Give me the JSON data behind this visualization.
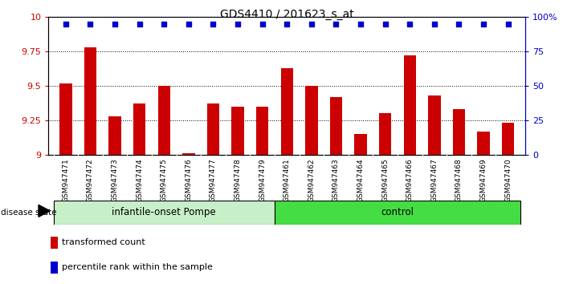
{
  "title": "GDS4410 / 201623_s_at",
  "samples": [
    "GSM947471",
    "GSM947472",
    "GSM947473",
    "GSM947474",
    "GSM947475",
    "GSM947476",
    "GSM947477",
    "GSM947478",
    "GSM947479",
    "GSM947461",
    "GSM947462",
    "GSM947463",
    "GSM947464",
    "GSM947465",
    "GSM947466",
    "GSM947467",
    "GSM947468",
    "GSM947469",
    "GSM947470"
  ],
  "bar_values": [
    9.52,
    9.78,
    9.28,
    9.37,
    9.5,
    9.01,
    9.37,
    9.35,
    9.35,
    9.63,
    9.5,
    9.42,
    9.15,
    9.3,
    9.72,
    9.43,
    9.33,
    9.17,
    9.23
  ],
  "dot_percentile": 95,
  "bar_color": "#cc0000",
  "dot_color": "#0000cc",
  "ylim_left": [
    9.0,
    10.0
  ],
  "ylim_right": [
    0,
    100
  ],
  "yticks_left": [
    9.0,
    9.25,
    9.5,
    9.75,
    10.0
  ],
  "ytick_labels_left": [
    "9",
    "9.25",
    "9.5",
    "9.75",
    "10"
  ],
  "yticks_right": [
    0,
    25,
    50,
    75,
    100
  ],
  "ytick_labels_right": [
    "0",
    "25",
    "50",
    "75",
    "100%"
  ],
  "hlines": [
    9.25,
    9.5,
    9.75
  ],
  "group1_label": "infantile-onset Pompe",
  "group1_count": 9,
  "group2_label": "control",
  "group2_count": 10,
  "group1_color": "#c8f0c8",
  "group2_color": "#44dd44",
  "xtick_bg_color": "#d8d8d8",
  "disease_state_label": "disease state",
  "legend_bar_label": "transformed count",
  "legend_dot_label": "percentile rank within the sample",
  "title_fontsize": 10,
  "bar_width": 0.5
}
